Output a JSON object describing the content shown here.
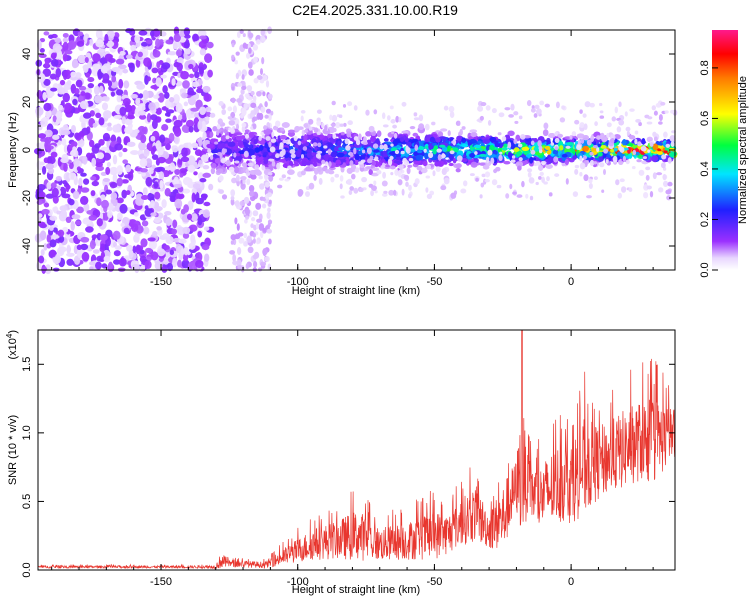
{
  "title": "C2E4.2025.331.10.00.R19",
  "chart_data": [
    {
      "type": "heatmap",
      "xlabel": "Height of straight line (km)",
      "ylabel": "Frequency (Hz)",
      "xlim": [
        -195,
        38
      ],
      "ylim": [
        -50,
        50
      ],
      "xticks": [
        -150,
        -100,
        -50,
        0
      ],
      "xtick_labels": [
        "-150",
        "-100",
        "-50",
        "0"
      ],
      "yticks": [
        -40,
        -20,
        0,
        20,
        40
      ],
      "ytick_labels": [
        "-40",
        "-20",
        "0",
        "20",
        "40"
      ],
      "colorbar": {
        "label": "Normalized spectral amplitude",
        "range": [
          0,
          0.95
        ],
        "ticks": [
          0,
          0.2,
          0.4,
          0.6,
          0.8
        ],
        "tick_labels": [
          "0.0",
          "0.2",
          "0.4",
          "0.6",
          "0.8"
        ],
        "colormap": "rainbow (white-violet-blue-cyan-green-yellow-red-magenta)"
      },
      "description_of_pattern": {
        "noise_region_x": [
          -195,
          -132
        ],
        "gap_x": [
          -132,
          -124
        ],
        "faint_column_x": [
          -124,
          -110
        ],
        "band_center_hz": 0,
        "band_halfwidth_hz_left": 12,
        "band_halfwidth_hz_right": 5,
        "band_start_x": -132,
        "band_peak_amplitude": 0.9
      }
    },
    {
      "type": "line",
      "xlabel": "Height of straight line (km)",
      "ylabel": "SNR (10 * v/v)",
      "y_multiplier_label": "(x10",
      "y_multiplier_exp": "4",
      "y_multiplier_close": ")",
      "xlim": [
        -195,
        38
      ],
      "ylim": [
        0,
        1.75
      ],
      "xticks": [
        -150,
        -100,
        -50,
        0
      ],
      "xtick_labels": [
        "-150",
        "-100",
        "-50",
        "0"
      ],
      "yticks": [
        0,
        0.5,
        1.0,
        1.5
      ],
      "ytick_labels": [
        "0.0",
        "0.5",
        "1.0",
        "1.5"
      ],
      "color": "#e8362e",
      "series_envelope": {
        "x": [
          -195,
          -170,
          -140,
          -130,
          -128,
          -125,
          -112,
          -105,
          -95,
          -85,
          -78,
          -70,
          -60,
          -50,
          -45,
          -40,
          -35,
          -30,
          -25,
          -20,
          -18,
          -16,
          -12,
          -8,
          -4,
          0,
          5,
          10,
          15,
          20,
          25,
          30,
          35,
          38
        ],
        "base": [
          0.02,
          0.02,
          0.02,
          0.02,
          0.05,
          0.04,
          0.03,
          0.08,
          0.15,
          0.18,
          0.2,
          0.15,
          0.17,
          0.2,
          0.22,
          0.3,
          0.35,
          0.25,
          0.3,
          0.55,
          0.6,
          0.55,
          0.45,
          0.5,
          0.55,
          0.55,
          0.65,
          0.7,
          0.75,
          0.8,
          0.85,
          0.85,
          0.9,
          0.95
        ],
        "peak": [
          0.04,
          0.04,
          0.04,
          0.05,
          0.18,
          0.1,
          0.08,
          0.22,
          0.4,
          0.5,
          0.62,
          0.42,
          0.48,
          0.6,
          0.55,
          0.68,
          0.82,
          0.55,
          0.85,
          1.0,
          1.75,
          1.05,
          0.95,
          1.1,
          1.2,
          1.22,
          1.45,
          1.3,
          1.35,
          1.45,
          1.5,
          1.58,
          1.4,
          1.35
        ]
      }
    }
  ]
}
